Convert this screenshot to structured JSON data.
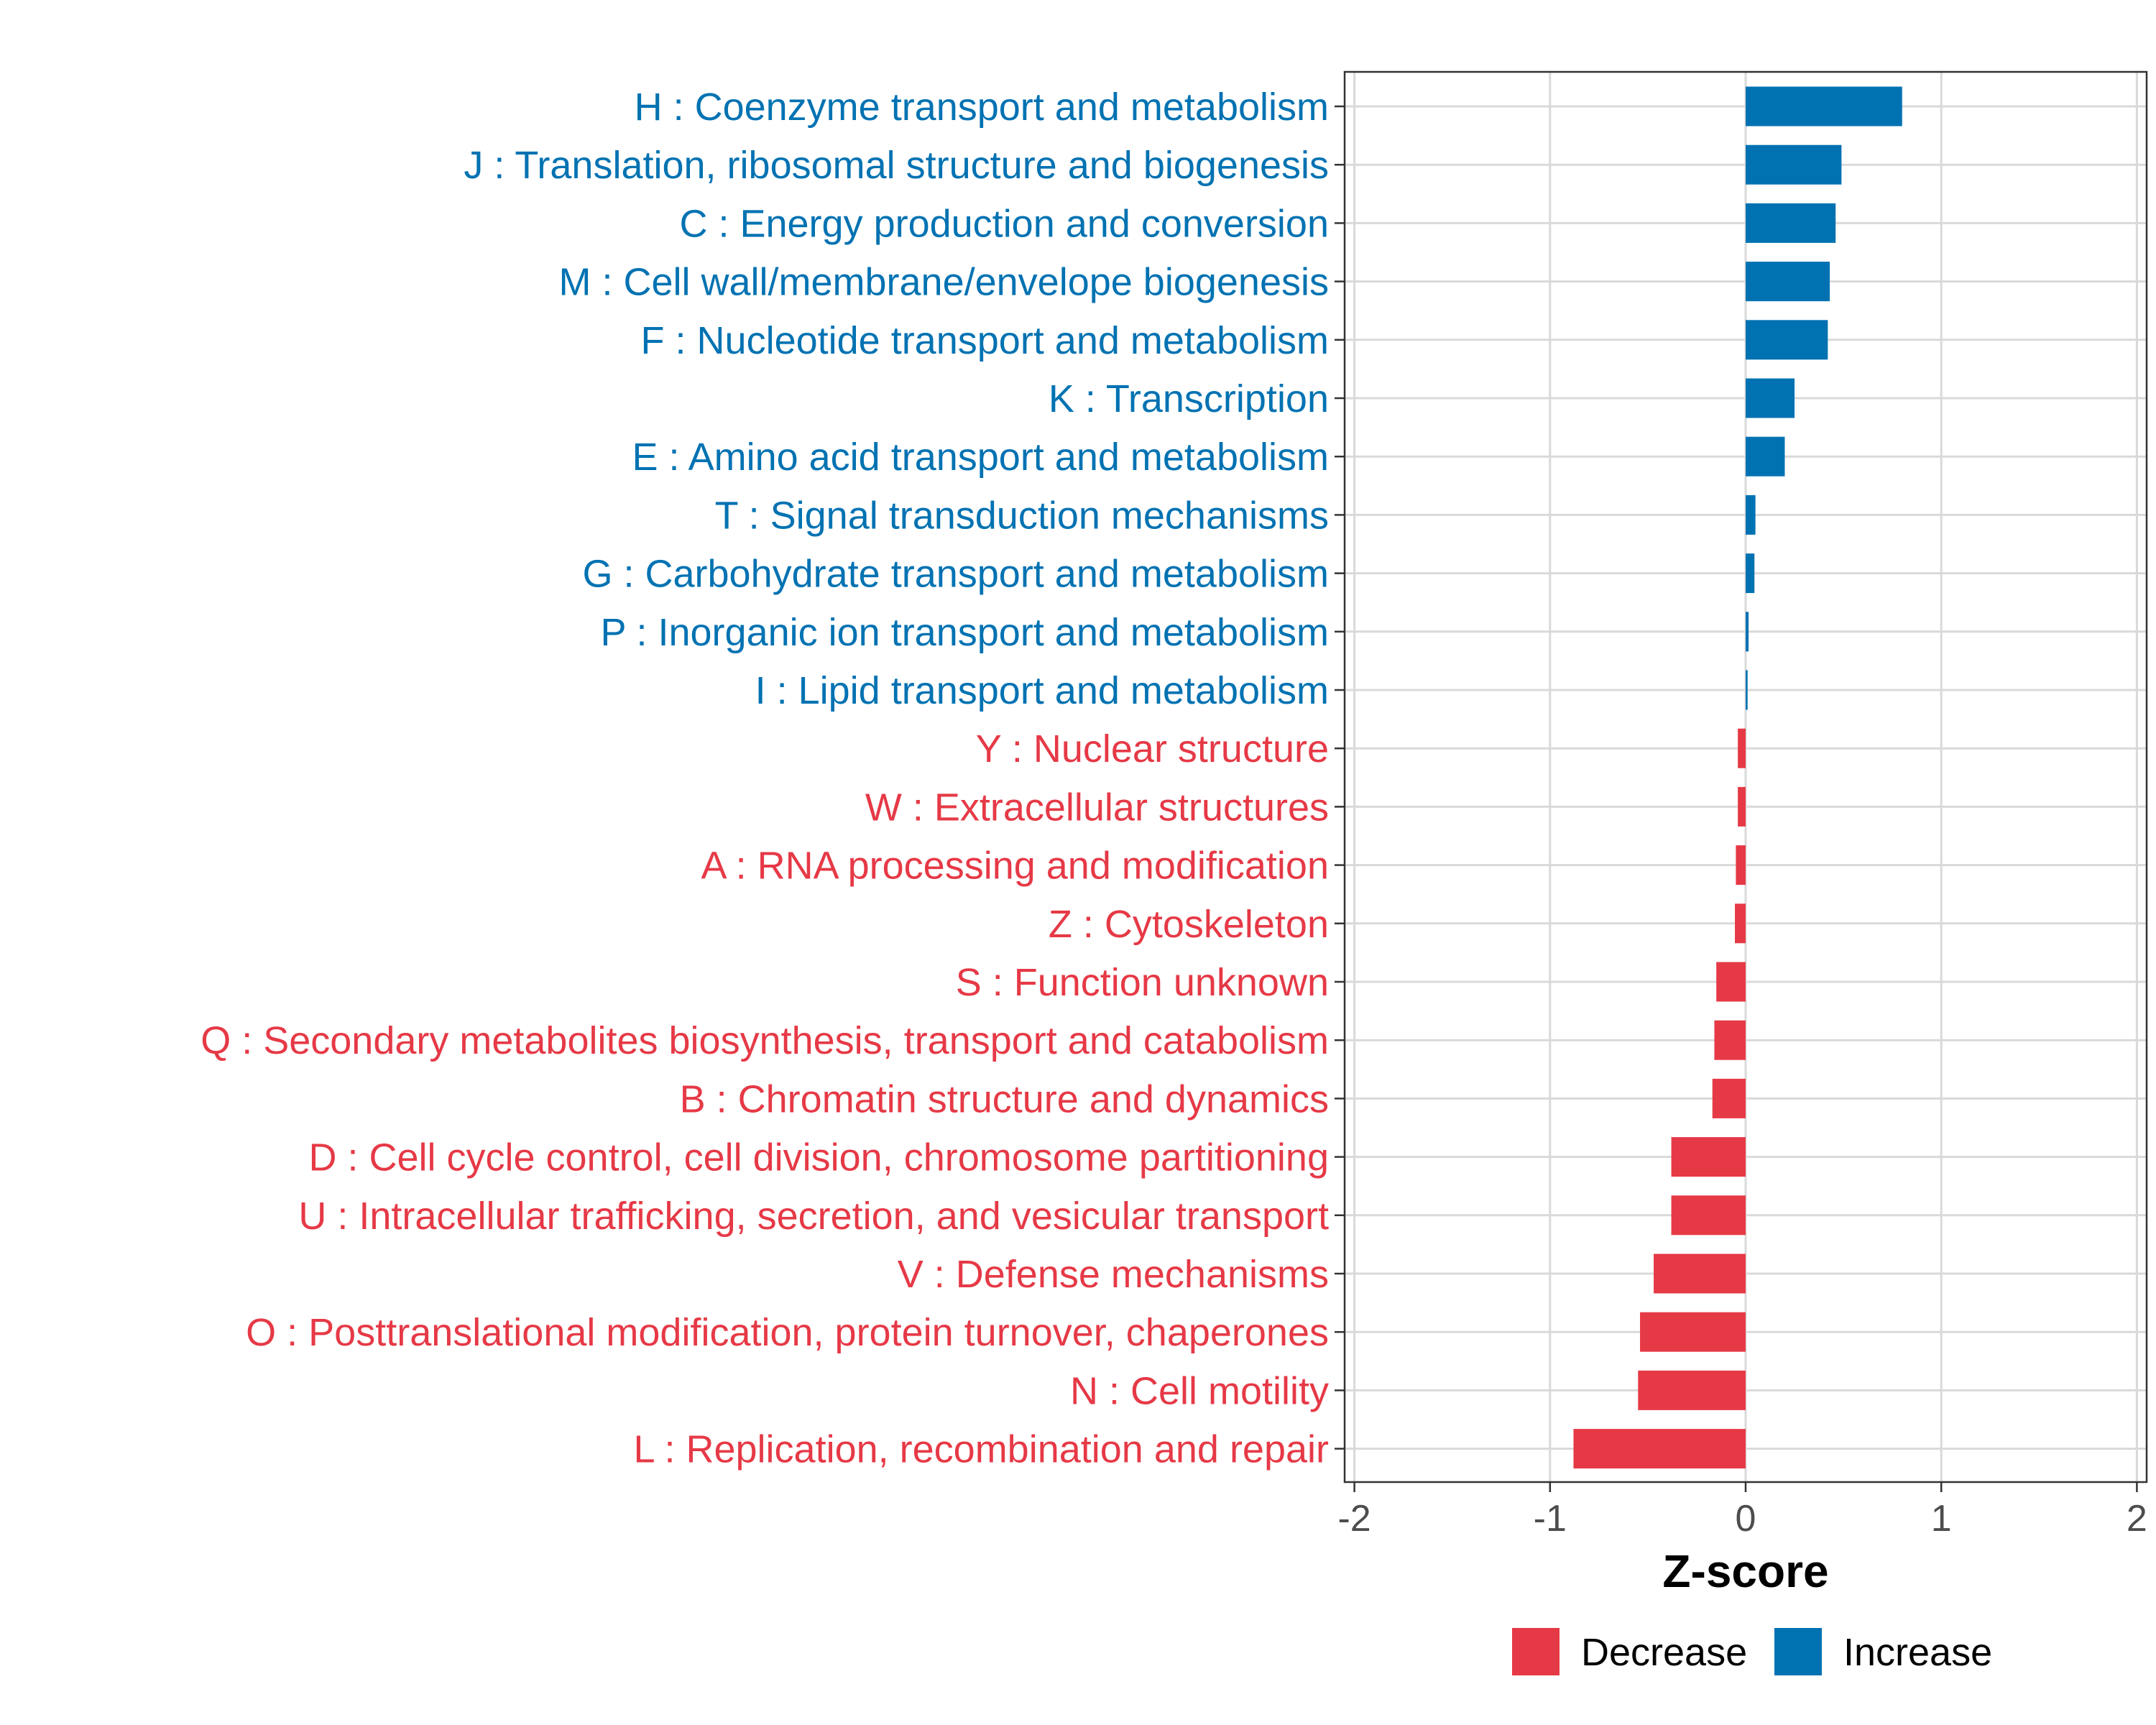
{
  "chart_data": {
    "type": "bar",
    "orientation": "horizontal",
    "title": "",
    "xlabel": "Z-score",
    "ylabel": "",
    "xlim": [
      -2.05,
      2.05
    ],
    "xticks": [
      -2,
      -1,
      0,
      1,
      2
    ],
    "xtick_labels": [
      "-2",
      "-1",
      "0",
      "1",
      "2"
    ],
    "grid": true,
    "legend_position": "bottom",
    "colors": {
      "Increase": "#0072b2",
      "Decrease": "#e63946"
    },
    "legend": [
      {
        "name": "Decrease",
        "color": "#e63946"
      },
      {
        "name": "Increase",
        "color": "#0072b2"
      }
    ],
    "categories": [
      "H : Coenzyme transport and metabolism",
      "J : Translation, ribosomal structure and biogenesis",
      "C : Energy production and conversion",
      "M : Cell wall/membrane/envelope biogenesis",
      "F : Nucleotide transport and metabolism",
      "K : Transcription",
      "E : Amino acid transport and metabolism",
      "T : Signal transduction mechanisms",
      "G : Carbohydrate transport and metabolism",
      "P : Inorganic ion transport and metabolism",
      "I : Lipid transport and metabolism",
      "Y : Nuclear structure",
      "W : Extracellular structures",
      "A : RNA processing and modification",
      "Z : Cytoskeleton",
      "S : Function unknown",
      "Q : Secondary metabolites biosynthesis, transport and catabolism",
      "B : Chromatin structure and dynamics",
      "D : Cell cycle control, cell division, chromosome partitioning",
      "U : Intracellular trafficking, secretion, and vesicular transport",
      "V : Defense mechanisms",
      "O : Posttranslational modification, protein turnover, chaperones",
      "N : Cell motility",
      "L : Replication, recombination and repair"
    ],
    "values": [
      0.8,
      0.49,
      0.46,
      0.43,
      0.42,
      0.25,
      0.2,
      0.05,
      0.045,
      0.015,
      0.01,
      -0.04,
      -0.04,
      -0.05,
      -0.055,
      -0.15,
      -0.16,
      -0.17,
      -0.38,
      -0.38,
      -0.47,
      -0.54,
      -0.55,
      -0.88
    ],
    "groups": [
      "Increase",
      "Increase",
      "Increase",
      "Increase",
      "Increase",
      "Increase",
      "Increase",
      "Increase",
      "Increase",
      "Increase",
      "Increase",
      "Decrease",
      "Decrease",
      "Decrease",
      "Decrease",
      "Decrease",
      "Decrease",
      "Decrease",
      "Decrease",
      "Decrease",
      "Decrease",
      "Decrease",
      "Decrease",
      "Decrease"
    ]
  }
}
